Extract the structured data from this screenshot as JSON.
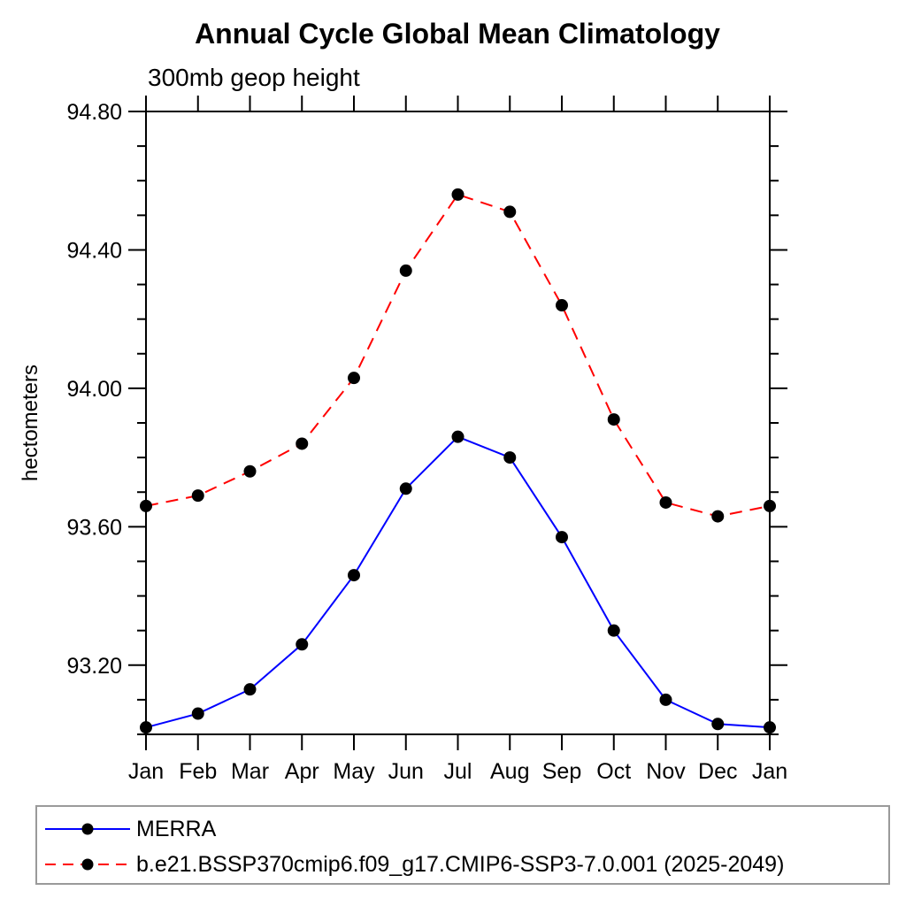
{
  "chart_data": {
    "type": "line",
    "title": "Annual Cycle Global Mean Climatology",
    "subtitle": "300mb geop height",
    "xlabel": "",
    "ylabel": "hectometers",
    "x_categories": [
      "Jan",
      "Feb",
      "Mar",
      "Apr",
      "May",
      "Jun",
      "Jul",
      "Aug",
      "Sep",
      "Oct",
      "Nov",
      "Dec",
      "Jan"
    ],
    "ylim": [
      93.0,
      94.8
    ],
    "ytick_major": [
      93.2,
      93.6,
      94.0,
      94.4,
      94.8
    ],
    "ytick_labels": [
      "93.20",
      "93.60",
      "94.00",
      "94.40",
      "94.80"
    ],
    "ytick_minor_interval": 0.1,
    "grid": false,
    "legend_position": "bottom-left-box",
    "marker": "filled-circle",
    "marker_color": "#000000",
    "axis_color": "#000000",
    "series": [
      {
        "name": "MERRA",
        "line_color": "#0000ff",
        "line_style": "solid",
        "values": [
          93.02,
          93.06,
          93.13,
          93.26,
          93.46,
          93.71,
          93.86,
          93.8,
          93.57,
          93.3,
          93.1,
          93.03,
          93.02
        ]
      },
      {
        "name": "b.e21.BSSP370cmip6.f09_g17.CMIP6-SSP3-7.0.001 (2025-2049)",
        "line_color": "#ff0000",
        "line_style": "dashed",
        "values": [
          93.66,
          93.69,
          93.76,
          93.84,
          94.03,
          94.34,
          94.56,
          94.51,
          94.24,
          93.91,
          93.67,
          93.63,
          93.66
        ]
      }
    ]
  }
}
